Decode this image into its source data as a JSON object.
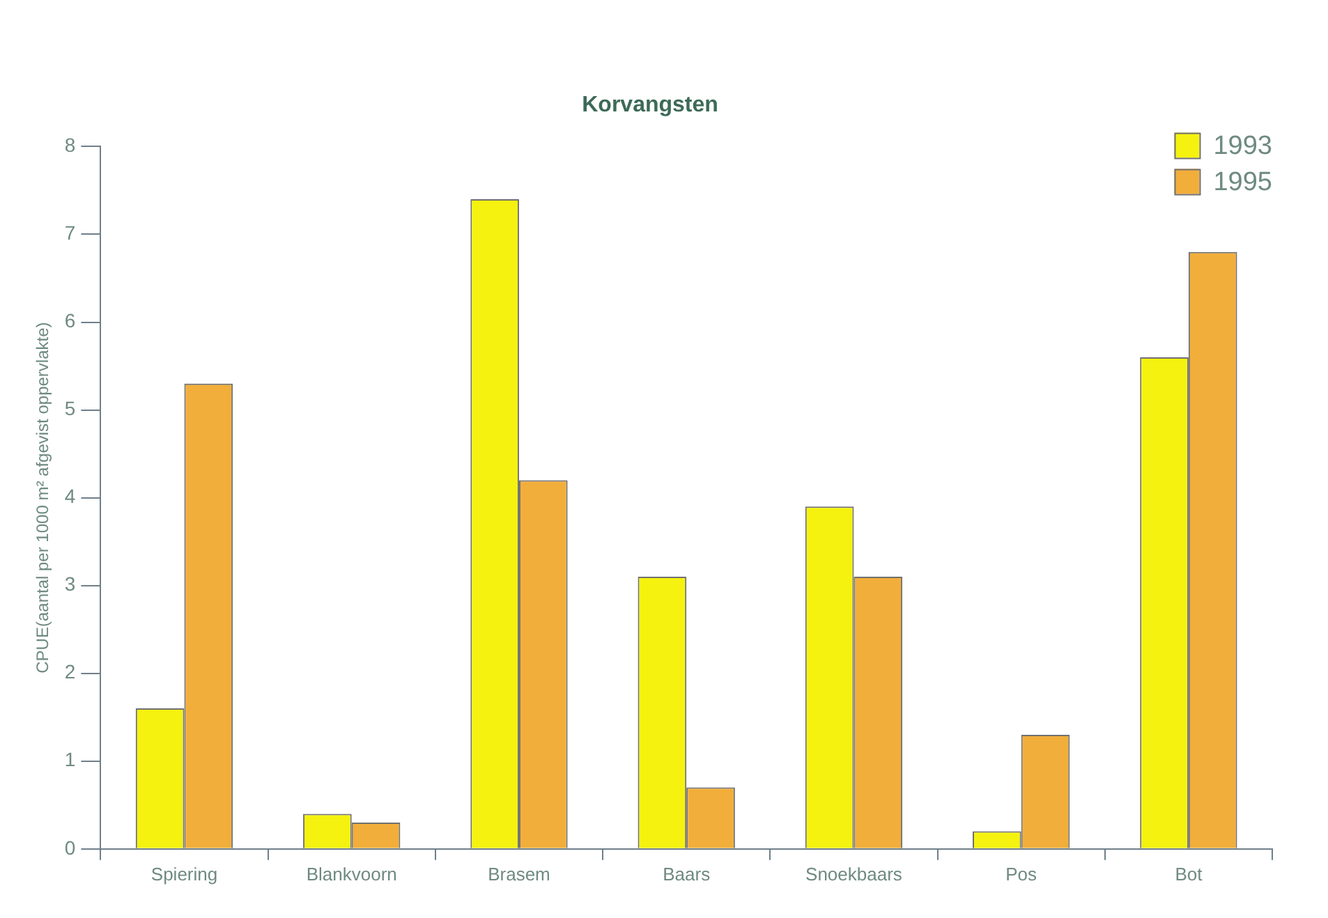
{
  "chart_data": {
    "type": "bar",
    "title": "Korvangsten",
    "ylabel": "CPUE(aantal per 1000 m² afgevist oppervlakte)",
    "categories": [
      "Spiering",
      "Blankvoorn",
      "Brasem",
      "Baars",
      "Snoekbaars",
      "Pos",
      "Bot"
    ],
    "series": [
      {
        "name": "1993",
        "color": "#f5f20f",
        "values": [
          1.6,
          0.4,
          7.4,
          3.1,
          3.9,
          0.2,
          5.6
        ]
      },
      {
        "name": "1995",
        "color": "#f2ae3a",
        "values": [
          5.3,
          0.3,
          4.2,
          0.7,
          3.1,
          1.3,
          6.8
        ]
      }
    ],
    "ylim": [
      0,
      8
    ],
    "yticks": [
      0,
      1,
      2,
      3,
      4,
      5,
      6,
      7,
      8
    ],
    "grid": false,
    "legend": "top right"
  }
}
